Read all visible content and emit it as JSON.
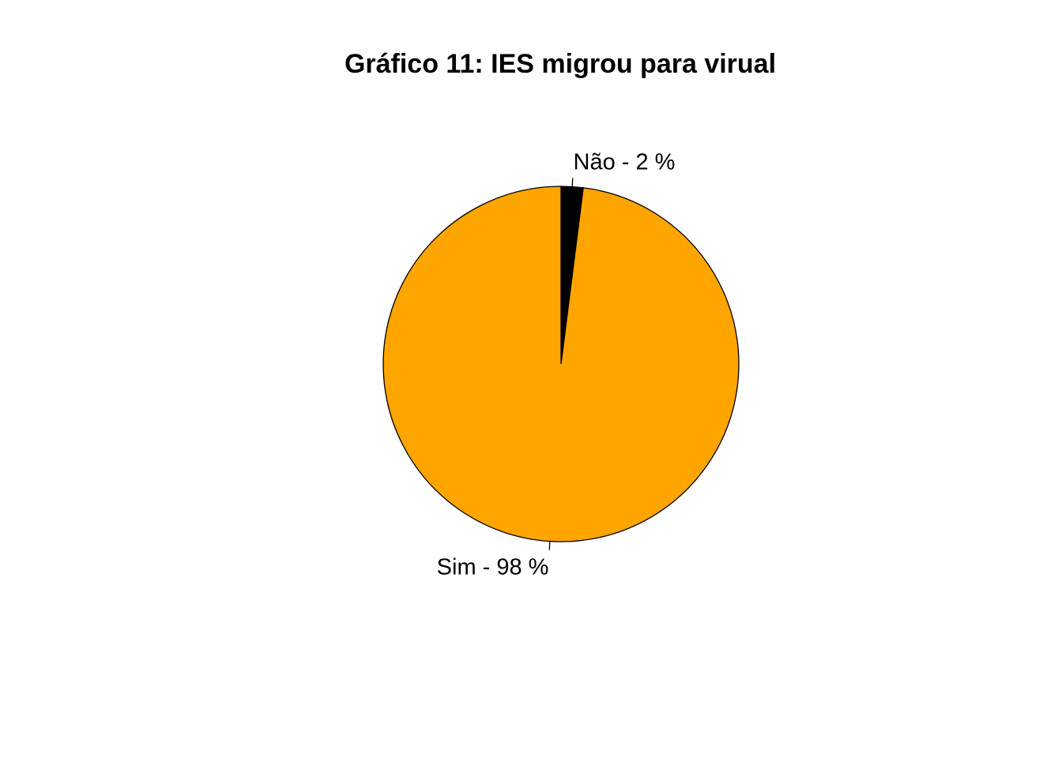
{
  "chart_data": {
    "type": "pie",
    "title": "Gráfico 11: IES migrou para virual",
    "start": "top",
    "direction": "clockwise",
    "slices": [
      {
        "name": "Não",
        "value": 2,
        "label": "Não - 2 %",
        "color": "#000000"
      },
      {
        "name": "Sim",
        "value": 98,
        "label": "Sim - 98 %",
        "color": "#FFA500"
      }
    ],
    "border_color": "#000000"
  }
}
